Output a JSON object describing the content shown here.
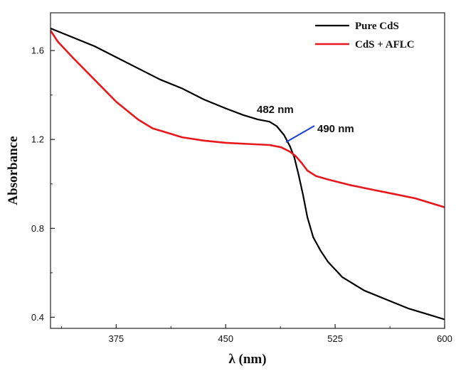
{
  "chart_data": {
    "type": "line",
    "xlabel": "λ (nm)",
    "ylabel": "Absorbance",
    "xlim": [
      330,
      600
    ],
    "ylim": [
      0.35,
      1.77
    ],
    "xticks": [
      375,
      450,
      525,
      600
    ],
    "yticks": [
      0.4,
      0.8,
      1.2,
      1.6
    ],
    "xtick_labels": [
      "375",
      "450",
      "525",
      "600"
    ],
    "ytick_labels": [
      "0.4",
      "0.8",
      "1.2",
      "1.6"
    ],
    "grid": false,
    "legend_position": "top-right",
    "series": [
      {
        "name": "Pure CdS",
        "color": "#000000",
        "x": [
          330,
          345,
          360,
          375,
          390,
          405,
          420,
          435,
          450,
          462,
          472,
          480,
          485,
          490,
          494,
          497,
          500,
          503,
          506,
          510,
          515,
          520,
          530,
          545,
          560,
          575,
          590,
          600
        ],
        "y": [
          1.7,
          1.66,
          1.62,
          1.57,
          1.52,
          1.47,
          1.43,
          1.38,
          1.34,
          1.31,
          1.29,
          1.28,
          1.26,
          1.22,
          1.17,
          1.12,
          1.04,
          0.95,
          0.85,
          0.76,
          0.7,
          0.65,
          0.58,
          0.52,
          0.48,
          0.44,
          0.41,
          0.39
        ]
      },
      {
        "name": "CdS + AFLC",
        "color": "#e8171c",
        "x": [
          330,
          335,
          345,
          360,
          375,
          390,
          400,
          410,
          420,
          435,
          450,
          465,
          480,
          488,
          494,
          498,
          502,
          506,
          512,
          520,
          535,
          550,
          565,
          580,
          600
        ],
        "y": [
          1.69,
          1.64,
          1.57,
          1.47,
          1.37,
          1.29,
          1.25,
          1.23,
          1.21,
          1.195,
          1.185,
          1.18,
          1.175,
          1.165,
          1.145,
          1.125,
          1.095,
          1.06,
          1.035,
          1.02,
          0.995,
          0.975,
          0.955,
          0.935,
          0.895
        ]
      }
    ],
    "annotations": [
      {
        "text": "482 nm",
        "x": 482,
        "y": 1.28
      },
      {
        "text": "490 nm",
        "x": 490,
        "y": 1.17,
        "color": "#1a3fd8"
      }
    ]
  }
}
